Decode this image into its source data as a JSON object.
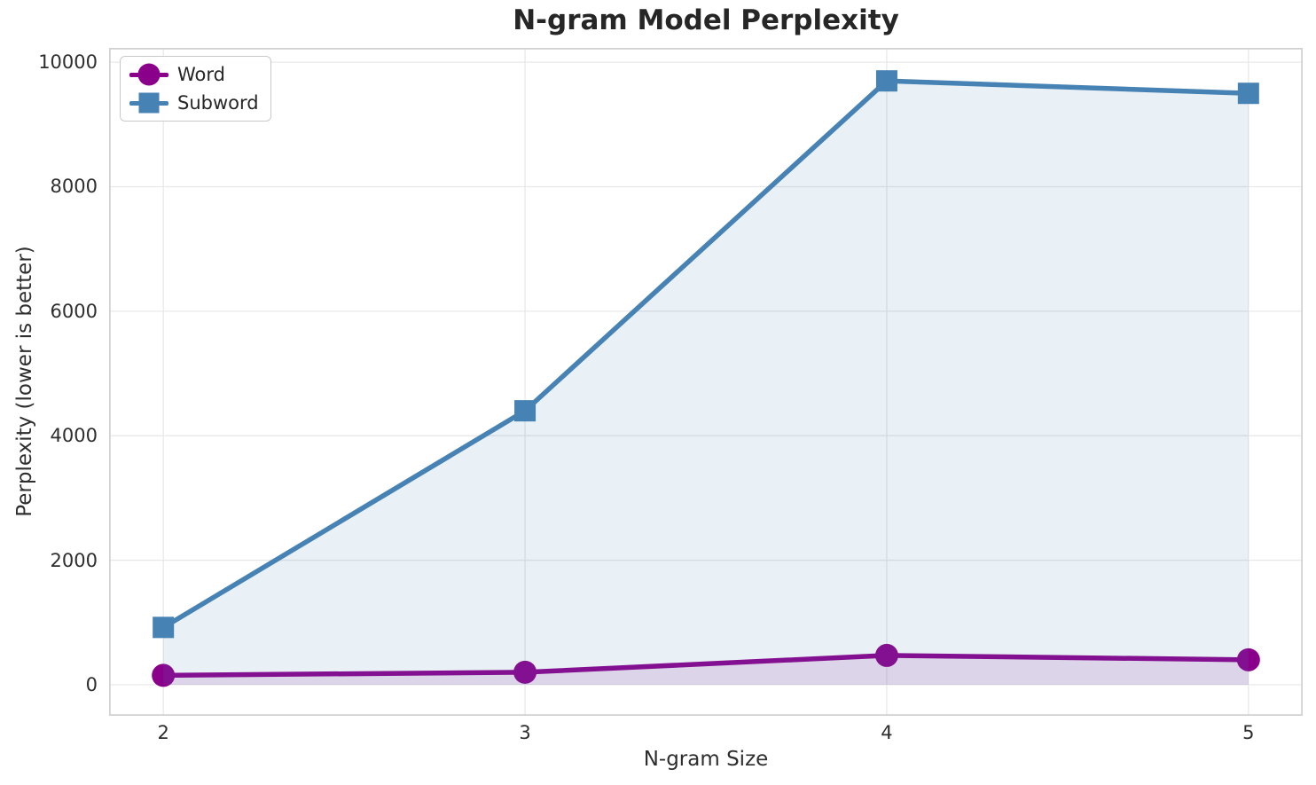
{
  "chart_data": {
    "type": "line",
    "title": "N-gram Model Perplexity",
    "xlabel": "N-gram Size",
    "ylabel": "Perplexity (lower is better)",
    "x": [
      2,
      3,
      4,
      5
    ],
    "series": [
      {
        "name": "Word",
        "marker": "circle",
        "color": "#8B008B",
        "values": [
          150,
          200,
          470,
          400
        ]
      },
      {
        "name": "Subword",
        "marker": "square",
        "color": "#4682B4",
        "values": [
          920,
          4400,
          9700,
          9500
        ]
      }
    ],
    "xticks": [
      2,
      3,
      4,
      5
    ],
    "yticks": [
      0,
      2000,
      4000,
      6000,
      8000,
      10000
    ],
    "xlim": [
      1.85,
      5.15
    ],
    "ylim": [
      -500,
      10230
    ],
    "grid": true,
    "area_fill_opacity": 0.12,
    "legend_position": "upper left"
  },
  "style": {
    "grid_color": "#E8E8E8",
    "spine_color": "#D2D2D2",
    "tick_color": "#2E2E2E",
    "title_color": "#262626",
    "background": "#FFFFFF"
  }
}
